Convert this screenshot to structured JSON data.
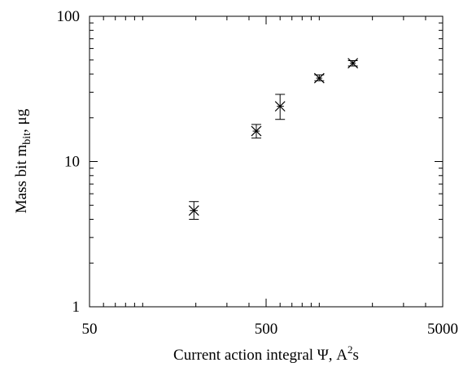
{
  "chart_data": {
    "type": "scatter",
    "title": "",
    "xlabel": {
      "text": "Current action integral Ψ, A",
      "sup": "2",
      "suffix": "s"
    },
    "ylabel": {
      "text": "Mass bit m",
      "sub": "bit",
      "suffix": ", μg"
    },
    "x_scale": "log",
    "y_scale": "log",
    "xlim": [
      50,
      5000
    ],
    "ylim": [
      1,
      100
    ],
    "x_ticks": [
      {
        "value": 50,
        "label": "50"
      },
      {
        "value": 500,
        "label": "500"
      },
      {
        "value": 5000,
        "label": "5000"
      }
    ],
    "y_ticks": [
      {
        "value": 1,
        "label": "1"
      },
      {
        "value": 10,
        "label": "10"
      },
      {
        "value": 100,
        "label": "100"
      }
    ],
    "grid": false,
    "legend": "none",
    "marker": "x",
    "color": "#000000",
    "points": [
      {
        "x": 195,
        "y": 4.6,
        "y_low": 4.0,
        "y_high": 5.3,
        "x_low": 185,
        "x_high": 205
      },
      {
        "x": 440,
        "y": 16.2,
        "y_low": 14.5,
        "y_high": 18.0,
        "x_low": 420,
        "x_high": 460
      },
      {
        "x": 600,
        "y": 24,
        "y_low": 19.5,
        "y_high": 29,
        "x_low": 575,
        "x_high": 630
      },
      {
        "x": 1000,
        "y": 37.5,
        "y_low": 36,
        "y_high": 39.5,
        "x_low": 960,
        "x_high": 1040
      },
      {
        "x": 1550,
        "y": 47.5,
        "y_low": 45.5,
        "y_high": 49.5,
        "x_low": 1490,
        "x_high": 1610
      }
    ]
  }
}
